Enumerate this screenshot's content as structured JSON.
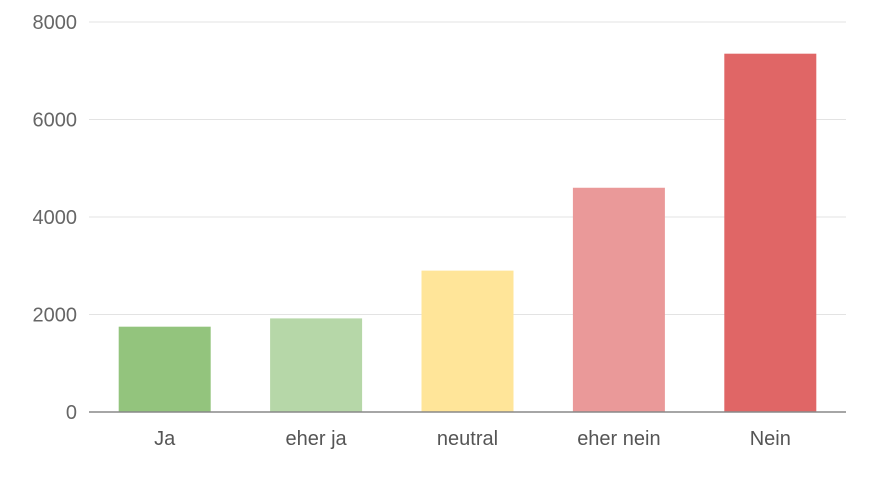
{
  "chart_data": {
    "type": "bar",
    "categories": [
      "Ja",
      "eher ja",
      "neutral",
      "eher nein",
      "Nein"
    ],
    "values": [
      1750,
      1920,
      2900,
      4600,
      7350
    ],
    "colors": [
      "#93c47d",
      "#b6d7a8",
      "#ffe599",
      "#ea9999",
      "#e06666"
    ],
    "ylim": [
      0,
      8000
    ],
    "yticks": [
      0,
      2000,
      4000,
      6000,
      8000
    ],
    "ytick_labels": [
      "0",
      "2000",
      "4000",
      "6000",
      "8000"
    ],
    "grid": true,
    "legend": "none"
  }
}
